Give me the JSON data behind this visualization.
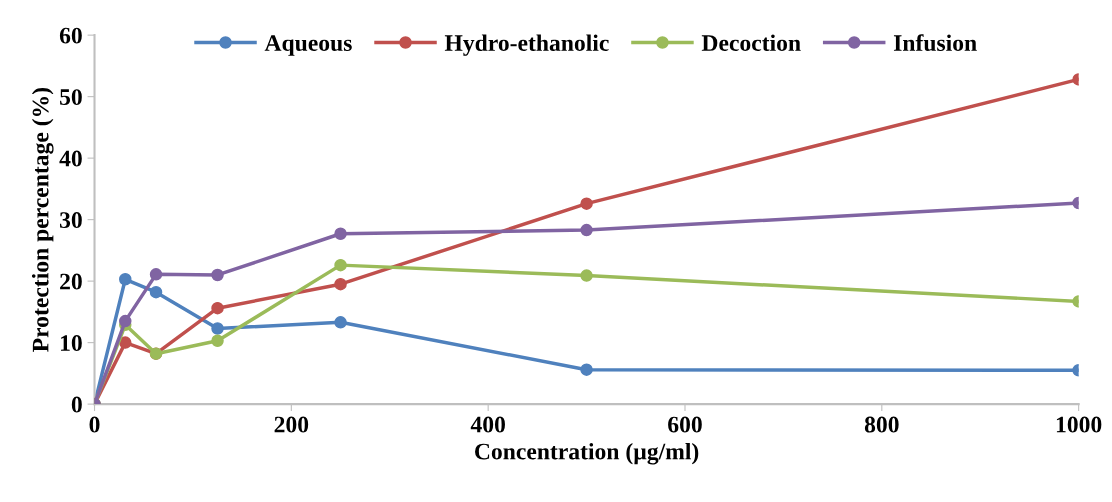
{
  "chart_data": {
    "type": "line",
    "xlabel": "Concentration (µg/ml)",
    "ylabel": "Protection percentage (%)",
    "x": [
      0,
      31.25,
      62.5,
      125,
      250,
      500,
      1000
    ],
    "series": [
      {
        "name": "Aqueous",
        "color": "#4f81bd",
        "values": [
          0,
          20.3,
          18.2,
          12.3,
          13.3,
          5.6,
          5.5
        ]
      },
      {
        "name": "Hydro-ethanolic",
        "color": "#c0504d",
        "values": [
          0,
          10,
          8.2,
          15.6,
          19.5,
          32.6,
          52.8
        ]
      },
      {
        "name": "Decoction",
        "color": "#9bbb59",
        "values": [
          0,
          12.9,
          8.2,
          10.3,
          22.6,
          20.9,
          16.7
        ]
      },
      {
        "name": "Infusion",
        "color": "#8064a2",
        "values": [
          0,
          13.5,
          21.1,
          21,
          27.7,
          28.3,
          32.7
        ]
      }
    ],
    "xlim": [
      0,
      1000
    ],
    "xticks": [
      0,
      200,
      400,
      600,
      800,
      1000
    ],
    "ylim": [
      0,
      60
    ],
    "yticks": [
      0,
      10,
      20,
      30,
      40,
      50,
      60
    ],
    "grid": false,
    "legend": "top",
    "marker": "circle",
    "line_style": "solid"
  }
}
